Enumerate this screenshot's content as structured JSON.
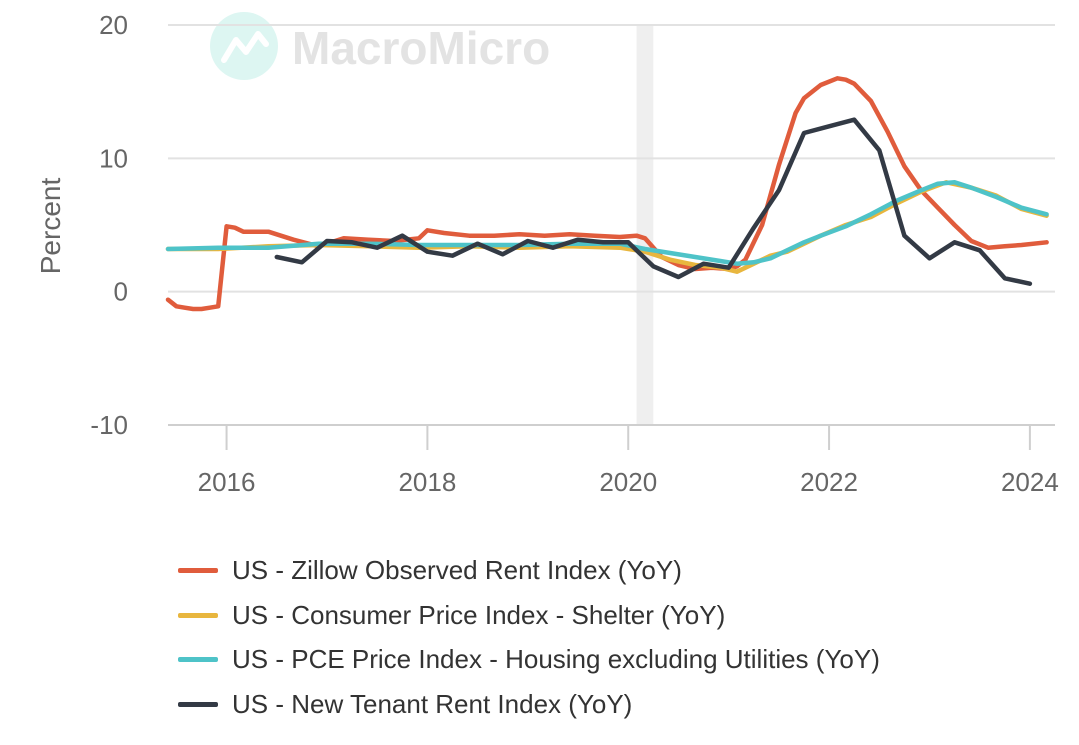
{
  "watermark": {
    "text": "MacroMicro"
  },
  "chart_data": {
    "type": "line",
    "title": "",
    "ylabel": "Percent",
    "xlabel": "",
    "ylim": [
      -10,
      20
    ],
    "yticks": [
      -10,
      0,
      10,
      20
    ],
    "xlim": [
      "2015-06",
      "2024-04"
    ],
    "xticks": [
      "2016",
      "2018",
      "2020",
      "2022",
      "2024"
    ],
    "grid": true,
    "legend_position": "bottom",
    "shaded_regions": [
      {
        "start": "2020-02",
        "end": "2020-04"
      }
    ],
    "series": [
      {
        "name": "US - Zillow Observed Rent Index (YoY)",
        "color": "#e05c3c",
        "points": [
          [
            "2015-06",
            -0.6
          ],
          [
            "2015-07",
            -1.1
          ],
          [
            "2015-08",
            -1.2
          ],
          [
            "2015-09",
            -1.3
          ],
          [
            "2015-10",
            -1.3
          ],
          [
            "2015-11",
            -1.2
          ],
          [
            "2015-12",
            -1.1
          ],
          [
            "2016-01",
            4.9
          ],
          [
            "2016-02",
            4.8
          ],
          [
            "2016-03",
            4.5
          ],
          [
            "2016-06",
            4.5
          ],
          [
            "2016-09",
            3.9
          ],
          [
            "2016-12",
            3.4
          ],
          [
            "2017-03",
            4.0
          ],
          [
            "2017-06",
            3.9
          ],
          [
            "2017-09",
            3.8
          ],
          [
            "2017-12",
            4.0
          ],
          [
            "2018-01",
            4.6
          ],
          [
            "2018-03",
            4.4
          ],
          [
            "2018-06",
            4.2
          ],
          [
            "2018-09",
            4.2
          ],
          [
            "2018-12",
            4.3
          ],
          [
            "2019-03",
            4.2
          ],
          [
            "2019-06",
            4.3
          ],
          [
            "2019-09",
            4.2
          ],
          [
            "2019-12",
            4.1
          ],
          [
            "2020-02",
            4.2
          ],
          [
            "2020-03",
            4.0
          ],
          [
            "2020-05",
            2.6
          ],
          [
            "2020-07",
            2.0
          ],
          [
            "2020-09",
            1.7
          ],
          [
            "2020-11",
            1.8
          ],
          [
            "2021-01",
            1.7
          ],
          [
            "2021-02",
            1.9
          ],
          [
            "2021-03",
            2.4
          ],
          [
            "2021-05",
            5.0
          ],
          [
            "2021-07",
            9.5
          ],
          [
            "2021-09",
            13.4
          ],
          [
            "2021-10",
            14.5
          ],
          [
            "2021-12",
            15.5
          ],
          [
            "2022-02",
            16.0
          ],
          [
            "2022-03",
            15.9
          ],
          [
            "2022-04",
            15.6
          ],
          [
            "2022-06",
            14.3
          ],
          [
            "2022-08",
            12.0
          ],
          [
            "2022-10",
            9.4
          ],
          [
            "2022-12",
            7.6
          ],
          [
            "2023-02",
            6.3
          ],
          [
            "2023-04",
            5.0
          ],
          [
            "2023-06",
            3.8
          ],
          [
            "2023-08",
            3.3
          ],
          [
            "2023-10",
            3.4
          ],
          [
            "2023-12",
            3.5
          ],
          [
            "2024-03",
            3.7
          ]
        ]
      },
      {
        "name": "US - Consumer Price Index - Shelter (YoY)",
        "color": "#e8b63e",
        "points": [
          [
            "2015-06",
            3.2
          ],
          [
            "2015-12",
            3.2
          ],
          [
            "2016-06",
            3.4
          ],
          [
            "2016-12",
            3.5
          ],
          [
            "2017-06",
            3.4
          ],
          [
            "2017-12",
            3.3
          ],
          [
            "2018-06",
            3.4
          ],
          [
            "2018-12",
            3.3
          ],
          [
            "2019-06",
            3.4
          ],
          [
            "2019-12",
            3.3
          ],
          [
            "2020-03",
            3.0
          ],
          [
            "2020-06",
            2.4
          ],
          [
            "2020-09",
            2.0
          ],
          [
            "2020-12",
            1.8
          ],
          [
            "2021-02",
            1.5
          ],
          [
            "2021-04",
            2.1
          ],
          [
            "2021-06",
            2.7
          ],
          [
            "2021-08",
            3.0
          ],
          [
            "2021-10",
            3.6
          ],
          [
            "2021-12",
            4.2
          ],
          [
            "2022-03",
            5.0
          ],
          [
            "2022-06",
            5.6
          ],
          [
            "2022-09",
            6.6
          ],
          [
            "2022-12",
            7.5
          ],
          [
            "2023-03",
            8.2
          ],
          [
            "2023-06",
            7.8
          ],
          [
            "2023-09",
            7.2
          ],
          [
            "2023-12",
            6.2
          ],
          [
            "2024-03",
            5.7
          ]
        ]
      },
      {
        "name": "US - PCE Price Index - Housing excluding Utilities (YoY)",
        "color": "#4ec3c8",
        "points": [
          [
            "2015-06",
            3.2
          ],
          [
            "2015-12",
            3.3
          ],
          [
            "2016-06",
            3.3
          ],
          [
            "2016-12",
            3.6
          ],
          [
            "2017-06",
            3.6
          ],
          [
            "2017-12",
            3.5
          ],
          [
            "2018-06",
            3.5
          ],
          [
            "2018-12",
            3.5
          ],
          [
            "2019-06",
            3.6
          ],
          [
            "2019-12",
            3.6
          ],
          [
            "2020-03",
            3.2
          ],
          [
            "2020-06",
            2.9
          ],
          [
            "2020-09",
            2.6
          ],
          [
            "2020-12",
            2.3
          ],
          [
            "2021-02",
            2.1
          ],
          [
            "2021-04",
            2.2
          ],
          [
            "2021-06",
            2.5
          ],
          [
            "2021-08",
            3.1
          ],
          [
            "2021-10",
            3.7
          ],
          [
            "2021-12",
            4.2
          ],
          [
            "2022-03",
            4.9
          ],
          [
            "2022-06",
            5.8
          ],
          [
            "2022-09",
            6.8
          ],
          [
            "2022-12",
            7.6
          ],
          [
            "2023-02",
            8.1
          ],
          [
            "2023-04",
            8.2
          ],
          [
            "2023-06",
            7.8
          ],
          [
            "2023-09",
            7.1
          ],
          [
            "2023-12",
            6.3
          ],
          [
            "2024-03",
            5.8
          ]
        ]
      },
      {
        "name": "US - New Tenant Rent Index (YoY)",
        "color": "#333a45",
        "points": [
          [
            "2016-07",
            2.6
          ],
          [
            "2016-10",
            2.2
          ],
          [
            "2017-01",
            3.8
          ],
          [
            "2017-04",
            3.7
          ],
          [
            "2017-07",
            3.3
          ],
          [
            "2017-10",
            4.2
          ],
          [
            "2018-01",
            3.0
          ],
          [
            "2018-04",
            2.7
          ],
          [
            "2018-07",
            3.6
          ],
          [
            "2018-10",
            2.8
          ],
          [
            "2019-01",
            3.8
          ],
          [
            "2019-04",
            3.3
          ],
          [
            "2019-07",
            3.9
          ],
          [
            "2019-10",
            3.7
          ],
          [
            "2020-01",
            3.7
          ],
          [
            "2020-04",
            1.9
          ],
          [
            "2020-07",
            1.1
          ],
          [
            "2020-10",
            2.1
          ],
          [
            "2021-01",
            1.8
          ],
          [
            "2021-04",
            4.8
          ],
          [
            "2021-07",
            7.6
          ],
          [
            "2021-10",
            11.9
          ],
          [
            "2022-01",
            12.4
          ],
          [
            "2022-04",
            12.9
          ],
          [
            "2022-07",
            10.6
          ],
          [
            "2022-10",
            4.2
          ],
          [
            "2023-01",
            2.5
          ],
          [
            "2023-04",
            3.7
          ],
          [
            "2023-07",
            3.1
          ],
          [
            "2023-10",
            1.0
          ],
          [
            "2024-01",
            0.6
          ]
        ]
      }
    ]
  }
}
